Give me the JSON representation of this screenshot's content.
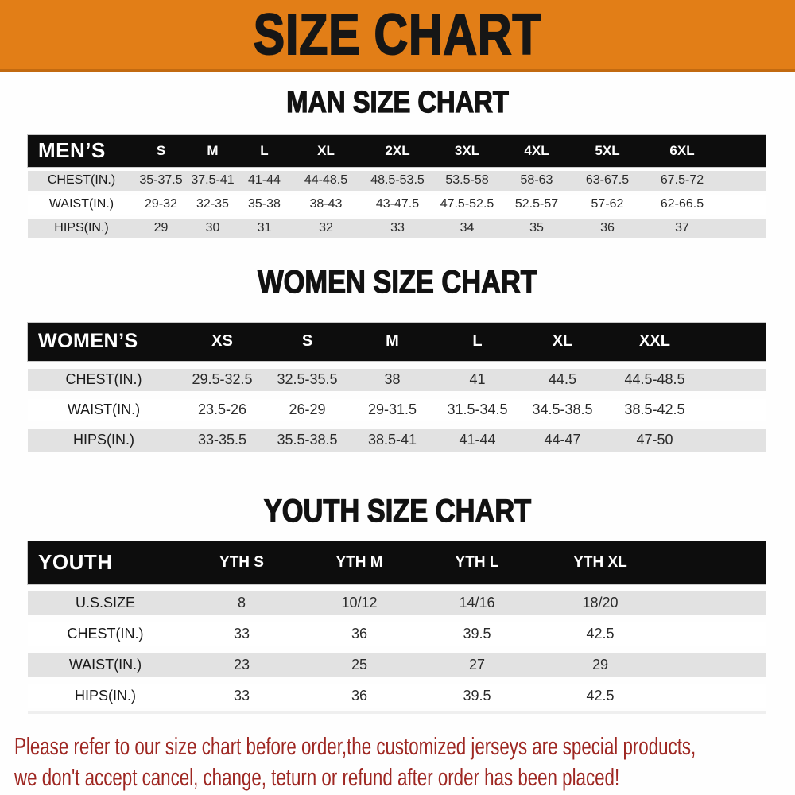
{
  "banner": {
    "title": "SIZE CHART"
  },
  "colors": {
    "banner_bg": "#E27E17",
    "table_header_bg": "#0d0d0d",
    "table_header_text": "#ffffff",
    "row_shaded": "#E2E2E2",
    "disclaimer_red": "#9E2722"
  },
  "sections": [
    {
      "heading": "MAN SIZE CHART",
      "table": {
        "header": [
          "MEN’S",
          "S",
          "M",
          "L",
          "XL",
          "2XL",
          "3XL",
          "4XL",
          "5XL",
          "6XL"
        ],
        "rows": [
          [
            "CHEST(IN.)",
            "35-37.5",
            "37.5-41",
            "41-44",
            "44-48.5",
            "48.5-53.5",
            "53.5-58",
            "58-63",
            "63-67.5",
            "67.5-72"
          ],
          [
            "WAIST(IN.)",
            "29-32",
            "32-35",
            "35-38",
            "38-43",
            "43-47.5",
            "47.5-52.5",
            "52.5-57",
            "57-62",
            "62-66.5"
          ],
          [
            "HIPS(IN.)",
            "29",
            "30",
            "31",
            "32",
            "33",
            "34",
            "35",
            "36",
            "37"
          ]
        ]
      }
    },
    {
      "heading": "WOMEN SIZE CHART",
      "table": {
        "header": [
          "WOMEN’S",
          "XS",
          "S",
          "M",
          "L",
          "XL",
          "XXL"
        ],
        "rows": [
          [
            "CHEST(IN.)",
            "29.5-32.5",
            "32.5-35.5",
            "38",
            "41",
            "44.5",
            "44.5-48.5"
          ],
          [
            "WAIST(IN.)",
            "23.5-26",
            "26-29",
            "29-31.5",
            "31.5-34.5",
            "34.5-38.5",
            "38.5-42.5"
          ],
          [
            "HIPS(IN.)",
            "33-35.5",
            "35.5-38.5",
            "38.5-41",
            "41-44",
            "44-47",
            "47-50"
          ]
        ]
      }
    },
    {
      "heading": "YOUTH SIZE CHART",
      "table": {
        "header": [
          "YOUTH",
          "YTH S",
          "YTH M",
          "YTH L",
          "YTH XL"
        ],
        "rows": [
          [
            "U.S.SIZE",
            "8",
            "10/12",
            "14/16",
            "18/20"
          ],
          [
            "CHEST(IN.)",
            "33",
            "36",
            "39.5",
            "42.5"
          ],
          [
            "WAIST(IN.)",
            "23",
            "25",
            "27",
            "29"
          ],
          [
            "HIPS(IN.)",
            "33",
            "36",
            "39.5",
            "42.5"
          ]
        ]
      }
    }
  ],
  "disclaimer": {
    "lines": [
      "Please refer to our size chart before order,the customized jerseys are special products,",
      "we don't accept cancel, change, teturn or refund after order has been placed!"
    ]
  }
}
